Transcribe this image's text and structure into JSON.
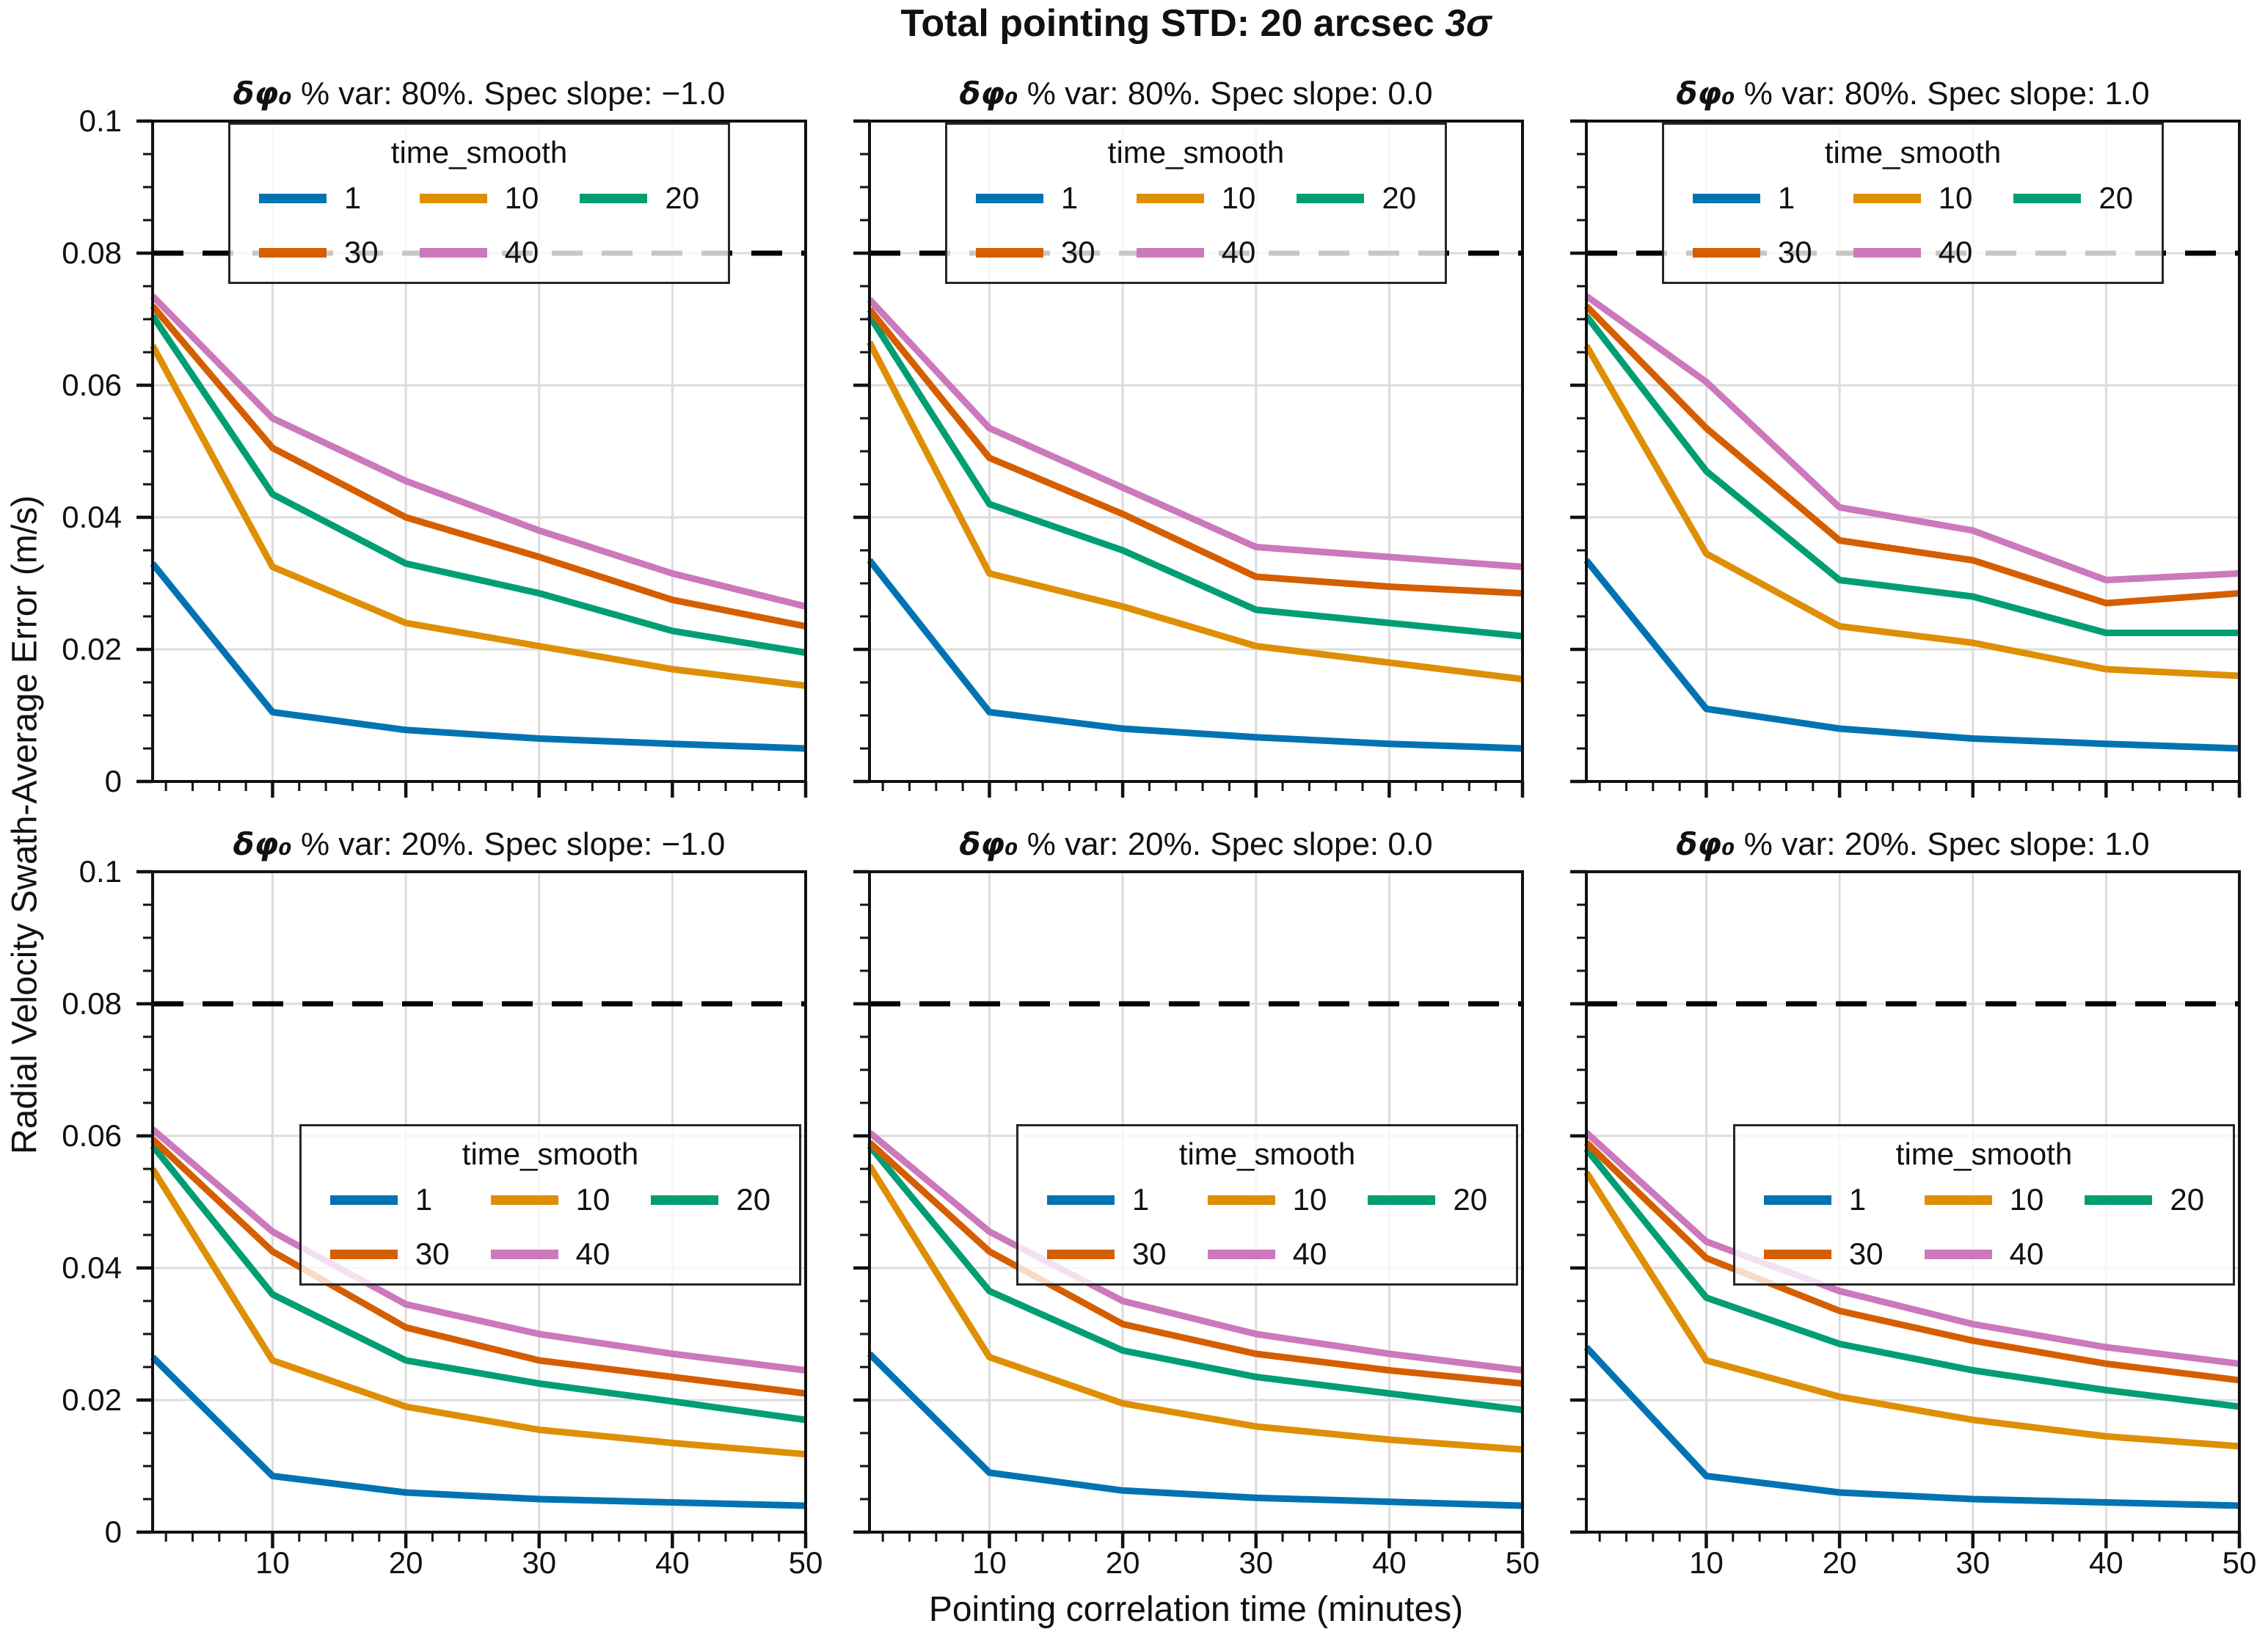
{
  "figure": {
    "title_prefix": "Total pointing STD: 20 arcsec ",
    "title_sigma": "3σ",
    "xlabel": "Pointing correlation time (minutes)",
    "ylabel": "Radial Velocity Swath-Average Error (m/s)"
  },
  "legend": {
    "title": "time_smooth",
    "labels": [
      "1",
      "10",
      "20",
      "30",
      "40"
    ]
  },
  "colors": {
    "1": "#0173b2",
    "10": "#de8f05",
    "20": "#029e73",
    "30": "#d55e00",
    "40": "#cc78bc",
    "spec_line": "#000000",
    "grid": "#dcdcdc",
    "spine": "#111111"
  },
  "axis": {
    "xlim": [
      1,
      50
    ],
    "ylim": [
      0,
      0.1
    ],
    "x_major_ticks": [
      10,
      20,
      30,
      40,
      50
    ],
    "x_tick_labels": [
      "10",
      "20",
      "30",
      "40",
      "50"
    ],
    "x_minor_step": 2,
    "y_major_ticks": [
      0,
      0.02,
      0.04,
      0.06,
      0.08,
      0.1
    ],
    "y_tick_labels": [
      "0",
      "0.02",
      "0.04",
      "0.06",
      "0.08",
      "0.1"
    ],
    "y_minor_step": 0.005,
    "grid": true,
    "spec_line_value": 0.08
  },
  "chart_data": [
    {
      "type": "line",
      "title_symbol": "δφ₀",
      "title_rest": " % var: 80%. Spec slope: −1.0",
      "legend_loc": "upper center",
      "x": [
        1,
        10,
        20,
        30,
        40,
        50
      ],
      "series": [
        {
          "name": "1",
          "values": [
            0.033,
            0.0105,
            0.0078,
            0.0065,
            0.0057,
            0.005
          ]
        },
        {
          "name": "10",
          "values": [
            0.066,
            0.0325,
            0.024,
            0.0205,
            0.017,
            0.0145
          ]
        },
        {
          "name": "20",
          "values": [
            0.0705,
            0.0435,
            0.033,
            0.0285,
            0.0228,
            0.0195
          ]
        },
        {
          "name": "30",
          "values": [
            0.072,
            0.0505,
            0.04,
            0.034,
            0.0275,
            0.0235
          ]
        },
        {
          "name": "40",
          "values": [
            0.0735,
            0.055,
            0.0455,
            0.038,
            0.0315,
            0.0265
          ]
        }
      ]
    },
    {
      "type": "line",
      "title_symbol": "δφ₀",
      "title_rest": " % var: 80%. Spec slope: 0.0",
      "legend_loc": "upper center",
      "x": [
        1,
        10,
        20,
        30,
        40,
        50
      ],
      "series": [
        {
          "name": "1",
          "values": [
            0.0335,
            0.0105,
            0.008,
            0.0067,
            0.0057,
            0.005
          ]
        },
        {
          "name": "10",
          "values": [
            0.0665,
            0.0315,
            0.0265,
            0.0205,
            0.018,
            0.0155
          ]
        },
        {
          "name": "20",
          "values": [
            0.0705,
            0.042,
            0.035,
            0.026,
            0.024,
            0.022
          ]
        },
        {
          "name": "30",
          "values": [
            0.0715,
            0.049,
            0.0405,
            0.031,
            0.0295,
            0.0285
          ]
        },
        {
          "name": "40",
          "values": [
            0.073,
            0.0535,
            0.0445,
            0.0355,
            0.034,
            0.0325
          ]
        }
      ]
    },
    {
      "type": "line",
      "title_symbol": "δφ₀",
      "title_rest": " % var: 80%. Spec slope: 1.0",
      "legend_loc": "upper center",
      "x": [
        1,
        10,
        20,
        30,
        40,
        50
      ],
      "series": [
        {
          "name": "1",
          "values": [
            0.0335,
            0.011,
            0.008,
            0.0065,
            0.0057,
            0.005
          ]
        },
        {
          "name": "10",
          "values": [
            0.066,
            0.0345,
            0.0235,
            0.021,
            0.017,
            0.016
          ]
        },
        {
          "name": "20",
          "values": [
            0.0705,
            0.047,
            0.0305,
            0.028,
            0.0225,
            0.0225
          ]
        },
        {
          "name": "30",
          "values": [
            0.072,
            0.0535,
            0.0365,
            0.0335,
            0.027,
            0.0285
          ]
        },
        {
          "name": "40",
          "values": [
            0.0735,
            0.0605,
            0.0415,
            0.038,
            0.0305,
            0.0315
          ]
        }
      ]
    },
    {
      "type": "line",
      "title_symbol": "δφ₀",
      "title_rest": " % var: 20%. Spec slope: −1.0",
      "legend_loc": "lower right",
      "x": [
        1,
        10,
        20,
        30,
        40,
        50
      ],
      "series": [
        {
          "name": "1",
          "values": [
            0.0265,
            0.0085,
            0.006,
            0.005,
            0.0045,
            0.004
          ]
        },
        {
          "name": "10",
          "values": [
            0.055,
            0.026,
            0.019,
            0.0155,
            0.0135,
            0.0118
          ]
        },
        {
          "name": "20",
          "values": [
            0.0585,
            0.036,
            0.026,
            0.0225,
            0.0198,
            0.017
          ]
        },
        {
          "name": "30",
          "values": [
            0.0595,
            0.0425,
            0.031,
            0.026,
            0.0235,
            0.021
          ]
        },
        {
          "name": "40",
          "values": [
            0.061,
            0.0455,
            0.0345,
            0.03,
            0.027,
            0.0245
          ]
        }
      ]
    },
    {
      "type": "line",
      "title_symbol": "δφ₀",
      "title_rest": " % var: 20%. Spec slope: 0.0",
      "legend_loc": "lower right",
      "x": [
        1,
        10,
        20,
        30,
        40,
        50
      ],
      "series": [
        {
          "name": "1",
          "values": [
            0.027,
            0.009,
            0.0063,
            0.0052,
            0.0046,
            0.004
          ]
        },
        {
          "name": "10",
          "values": [
            0.0555,
            0.0265,
            0.0195,
            0.016,
            0.014,
            0.0125
          ]
        },
        {
          "name": "20",
          "values": [
            0.0585,
            0.0365,
            0.0275,
            0.0235,
            0.021,
            0.0185
          ]
        },
        {
          "name": "30",
          "values": [
            0.059,
            0.0425,
            0.0315,
            0.027,
            0.0245,
            0.0225
          ]
        },
        {
          "name": "40",
          "values": [
            0.0605,
            0.0455,
            0.035,
            0.03,
            0.027,
            0.0245
          ]
        }
      ]
    },
    {
      "type": "line",
      "title_symbol": "δφ₀",
      "title_rest": " % var: 20%. Spec slope: 1.0",
      "legend_loc": "lower right",
      "x": [
        1,
        10,
        20,
        30,
        40,
        50
      ],
      "series": [
        {
          "name": "1",
          "values": [
            0.028,
            0.0085,
            0.006,
            0.005,
            0.0045,
            0.004
          ]
        },
        {
          "name": "10",
          "values": [
            0.0545,
            0.026,
            0.0205,
            0.017,
            0.0145,
            0.013
          ]
        },
        {
          "name": "20",
          "values": [
            0.058,
            0.0355,
            0.0285,
            0.0245,
            0.0215,
            0.019
          ]
        },
        {
          "name": "30",
          "values": [
            0.059,
            0.0415,
            0.0335,
            0.029,
            0.0255,
            0.023
          ]
        },
        {
          "name": "40",
          "values": [
            0.0605,
            0.044,
            0.0365,
            0.0315,
            0.028,
            0.0255
          ]
        }
      ]
    }
  ]
}
